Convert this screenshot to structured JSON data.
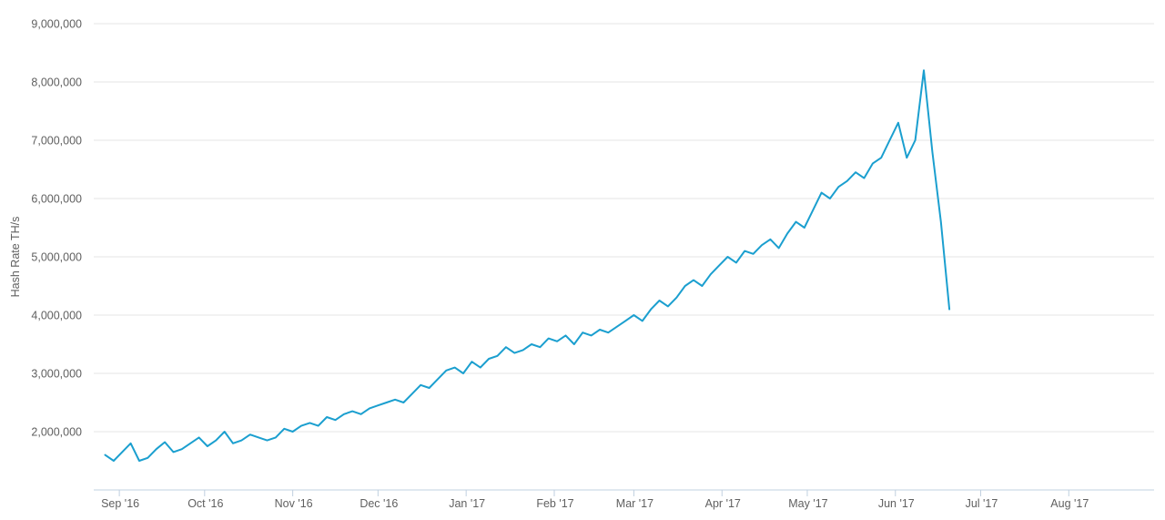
{
  "colors": {
    "series": "#1b9fcf",
    "grid": "#e6e6e6",
    "axis": "#c0d0e0",
    "label": "#606060"
  },
  "chart_data": {
    "type": "line",
    "title": "",
    "xlabel": "",
    "ylabel": "Hash Rate TH/s",
    "ylim": [
      1000000,
      9000000
    ],
    "yticks": [
      2000000,
      3000000,
      4000000,
      5000000,
      6000000,
      7000000,
      8000000,
      9000000
    ],
    "ytick_labels": [
      "2,000,000",
      "3,000,000",
      "4,000,000",
      "5,000,000",
      "6,000,000",
      "7,000,000",
      "8,000,000",
      "9,000,000"
    ],
    "xlim": [
      "2016-08-23",
      "2017-08-31"
    ],
    "xticks": [
      "2016-09-01",
      "2016-10-01",
      "2016-11-01",
      "2016-12-01",
      "2017-01-01",
      "2017-02-01",
      "2017-03-01",
      "2017-04-01",
      "2017-05-01",
      "2017-06-01",
      "2017-07-01",
      "2017-08-01"
    ],
    "xtick_labels": [
      "Sep '16",
      "Oct '16",
      "Nov '16",
      "Dec '16",
      "Jan '17",
      "Feb '17",
      "Mar '17",
      "Apr '17",
      "May '17",
      "Jun '17",
      "Jul '17",
      "Aug '17"
    ],
    "grid": true,
    "legend": "none",
    "series": [
      {
        "start": "2016-08-27",
        "step_days": 3,
        "values": [
          1600000,
          1500000,
          1650000,
          1800000,
          1500000,
          1550000,
          1700000,
          1820000,
          1650000,
          1700000,
          1800000,
          1900000,
          1750000,
          1850000,
          2000000,
          1800000,
          1850000,
          1950000,
          1900000,
          1850000,
          1900000,
          2050000,
          2000000,
          2100000,
          2150000,
          2100000,
          2250000,
          2200000,
          2300000,
          2350000,
          2300000,
          2400000,
          2450000,
          2500000,
          2550000,
          2500000,
          2650000,
          2800000,
          2750000,
          2900000,
          3050000,
          3100000,
          3000000,
          3200000,
          3100000,
          3250000,
          3300000,
          3450000,
          3350000,
          3400000,
          3500000,
          3450000,
          3600000,
          3550000,
          3650000,
          3500000,
          3700000,
          3650000,
          3750000,
          3700000,
          3800000,
          3900000,
          4000000,
          3900000,
          4100000,
          4250000,
          4150000,
          4300000,
          4500000,
          4600000,
          4500000,
          4700000,
          4850000,
          5000000,
          4900000,
          5100000,
          5050000,
          5200000,
          5300000,
          5150000,
          5400000,
          5600000,
          5500000,
          5800000,
          6100000,
          6000000,
          6200000,
          6300000,
          6450000,
          6350000,
          6600000,
          6700000,
          7000000,
          7300000,
          6700000,
          7000000,
          8200000,
          6800000,
          5600000,
          4100000
        ]
      }
    ]
  }
}
